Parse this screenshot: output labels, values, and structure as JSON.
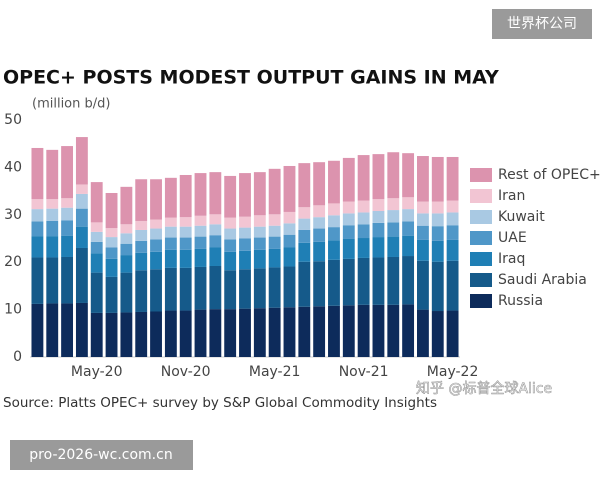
{
  "chart_data": {
    "type": "stacked_bar",
    "title": "OPEC+ POSTS MODEST OUTPUT GAINS IN MAY",
    "y_label": "(million b/d)",
    "source": "Source: Platts OPEC+ survey by S&P Global Commodity Insights",
    "categories": [
      null,
      null,
      null,
      null,
      "May-20",
      null,
      null,
      null,
      null,
      null,
      "Nov-20",
      null,
      null,
      null,
      null,
      null,
      "May-21",
      null,
      null,
      null,
      null,
      null,
      "Nov-21",
      null,
      null,
      null,
      null,
      null,
      "May-22"
    ],
    "ylim": [
      0,
      50
    ],
    "yticks": [
      0,
      10,
      20,
      30,
      40,
      50
    ],
    "grid": false,
    "legend": "right",
    "series": [
      {
        "name": "Russia",
        "color": "#0d2b5b",
        "values": [
          11.2,
          11.3,
          11.3,
          11.4,
          9.3,
          9.3,
          9.4,
          9.5,
          9.6,
          9.8,
          9.8,
          10.0,
          10.1,
          10.1,
          10.2,
          10.3,
          10.4,
          10.5,
          10.6,
          10.7,
          10.8,
          10.9,
          11.0,
          11.0,
          11.0,
          11.1,
          10.0,
          9.7,
          9.8
        ]
      },
      {
        "name": "Saudi Arabia",
        "color": "#155a8a",
        "values": [
          9.8,
          9.7,
          9.8,
          11.6,
          8.5,
          7.6,
          8.4,
          8.8,
          8.9,
          9.0,
          9.0,
          9.0,
          9.1,
          8.2,
          8.3,
          8.4,
          8.5,
          8.6,
          9.5,
          9.5,
          9.7,
          9.8,
          9.9,
          10.0,
          10.1,
          10.2,
          10.3,
          10.4,
          10.5
        ]
      },
      {
        "name": "Iraq",
        "color": "#1f7fb5",
        "values": [
          4.5,
          4.5,
          4.5,
          4.5,
          4.1,
          3.8,
          3.7,
          3.7,
          3.7,
          3.8,
          3.8,
          3.8,
          3.9,
          3.9,
          3.9,
          3.9,
          3.9,
          4.0,
          4.0,
          4.1,
          4.1,
          4.2,
          4.2,
          4.3,
          4.3,
          4.3,
          4.4,
          4.4,
          4.4
        ]
      },
      {
        "name": "UAE",
        "color": "#4f97c8",
        "values": [
          3.1,
          3.2,
          3.2,
          3.8,
          2.4,
          2.4,
          2.4,
          2.5,
          2.6,
          2.6,
          2.6,
          2.6,
          2.6,
          2.6,
          2.6,
          2.6,
          2.6,
          2.7,
          2.7,
          2.8,
          2.8,
          2.9,
          2.9,
          3.0,
          3.0,
          3.0,
          3.0,
          3.1,
          3.1
        ]
      },
      {
        "name": "Kuwait",
        "color": "#a9c9e3",
        "values": [
          2.6,
          2.6,
          2.7,
          3.1,
          2.1,
          2.2,
          2.2,
          2.3,
          2.3,
          2.3,
          2.3,
          2.3,
          2.3,
          2.3,
          2.3,
          2.3,
          2.3,
          2.4,
          2.4,
          2.4,
          2.5,
          2.5,
          2.5,
          2.5,
          2.6,
          2.6,
          2.6,
          2.7,
          2.7
        ]
      },
      {
        "name": "Iran",
        "color": "#f2c5d3",
        "values": [
          2.1,
          2.0,
          2.0,
          2.0,
          2.0,
          1.9,
          1.9,
          1.9,
          1.9,
          1.9,
          2.0,
          2.1,
          2.1,
          2.3,
          2.3,
          2.4,
          2.4,
          2.4,
          2.4,
          2.5,
          2.5,
          2.5,
          2.5,
          2.5,
          2.5,
          2.5,
          2.5,
          2.5,
          2.5
        ]
      },
      {
        "name": "Rest of OPEC+",
        "color": "#dc93ae",
        "values": [
          10.8,
          10.4,
          11.0,
          10.0,
          8.5,
          7.4,
          7.9,
          8.8,
          8.5,
          8.4,
          8.9,
          9.0,
          8.9,
          8.8,
          9.2,
          9.1,
          9.6,
          9.7,
          9.3,
          9.1,
          9.0,
          9.2,
          9.6,
          9.5,
          9.7,
          9.3,
          9.6,
          9.4,
          9.2
        ]
      }
    ]
  },
  "watermarks": {
    "top_right": "世界杯公司",
    "credit": "知乎 @标普全球Alice",
    "bottom_left": "pro-2026-wc.com.cn"
  }
}
